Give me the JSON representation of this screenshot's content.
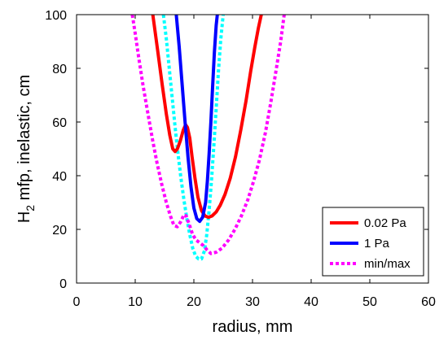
{
  "chart_data": {
    "type": "line",
    "xlabel": "radius, mm",
    "ylabel_main": "H",
    "ylabel_sub": "2",
    "ylabel_rest": " mfp, inelastic, cm",
    "xlim": [
      0,
      60
    ],
    "ylim": [
      0,
      100
    ],
    "xticks": [
      0,
      10,
      20,
      30,
      40,
      50,
      60
    ],
    "yticks": [
      0,
      20,
      40,
      60,
      80,
      100
    ],
    "grid": false,
    "legend_position": "bottom-right",
    "series": [
      {
        "name": "0.02 Pa",
        "color": "#ff0000",
        "style": "solid",
        "x": [
          13.0,
          13.8,
          14.6,
          15.3,
          15.9,
          16.4,
          16.8,
          17.2,
          17.7,
          18.2,
          18.6,
          18.9,
          19.3,
          19.7,
          20.2,
          20.7,
          21.3,
          21.9,
          22.5,
          23.1,
          23.8,
          24.5,
          25.3,
          26.2,
          27.1,
          28.0,
          28.9,
          29.7,
          30.4,
          31.0,
          31.5
        ],
        "y": [
          100,
          87,
          74,
          63,
          55,
          50,
          49,
          50,
          53,
          57,
          59,
          58,
          54,
          47,
          39,
          32,
          27,
          25,
          24.5,
          25,
          26.5,
          29,
          33,
          39,
          47,
          57,
          68,
          79,
          88,
          95,
          100
        ]
      },
      {
        "name": "1 Pa",
        "color": "#0000ff",
        "style": "solid",
        "x": [
          17.0,
          17.5,
          18.0,
          18.5,
          19.0,
          19.5,
          20.0,
          20.5,
          21.0,
          21.5,
          22.0,
          22.3,
          22.6,
          22.9,
          23.2,
          23.5,
          23.8,
          24.0
        ],
        "y": [
          100,
          88,
          74,
          60,
          47,
          36,
          28,
          24,
          23,
          24.5,
          30,
          38,
          48,
          60,
          73,
          86,
          96,
          100
        ]
      },
      {
        "name": "min/max",
        "color": "#ff00ff",
        "style": "dotted",
        "x": [
          9.5,
          10.0,
          10.6,
          11.3,
          12.1,
          12.9,
          13.7,
          14.5,
          15.3,
          16.0,
          16.6,
          17.2,
          17.8,
          18.3,
          18.7,
          19.2,
          19.8,
          20.4,
          21.0,
          21.6,
          22.2,
          22.9,
          23.8,
          24.8,
          25.9,
          27.0,
          28.1,
          29.2,
          30.2,
          31.2,
          32.2,
          33.1,
          34.0,
          34.8,
          35.4
        ],
        "y": [
          100,
          93,
          84,
          74,
          64,
          54,
          45,
          37,
          30,
          25,
          21.5,
          21,
          23,
          25.5,
          25,
          22,
          18,
          16,
          15,
          14,
          12.5,
          11,
          11.5,
          13,
          16,
          20,
          25,
          31,
          38,
          46,
          56,
          67,
          79,
          90,
          100
        ]
      },
      {
        "name": "",
        "color": "#00ffff",
        "style": "dotted",
        "x": [
          14.8,
          15.3,
          15.8,
          16.3,
          16.8,
          17.3,
          17.8,
          18.3,
          18.8,
          19.3,
          19.8,
          20.3,
          20.8,
          21.3,
          21.8,
          22.2,
          22.6,
          23.0,
          23.4,
          23.8,
          24.2,
          24.6,
          25.0
        ],
        "y": [
          100,
          91,
          80,
          69,
          58,
          48,
          39,
          31,
          24,
          18,
          13,
          10,
          9,
          9,
          12,
          18,
          27,
          38,
          51,
          65,
          79,
          91,
          100
        ]
      }
    ],
    "legend_entries": [
      {
        "label": "0.02 Pa",
        "color": "#ff0000",
        "style": "solid"
      },
      {
        "label": "1 Pa",
        "color": "#0000ff",
        "style": "solid"
      },
      {
        "label": "min/max",
        "color": "#ff00ff",
        "style": "dotted"
      }
    ]
  }
}
